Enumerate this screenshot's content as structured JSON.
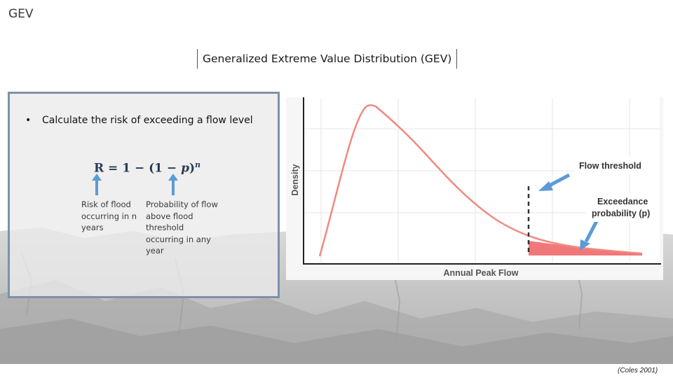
{
  "slide": {
    "label": "GEV",
    "title": "Generalized Extreme Value Distribution (GEV)",
    "citation": "(Coles 2001)"
  },
  "left_panel": {
    "bullet": "Calculate the risk of exceeding a flow level",
    "formula": {
      "lhs": "R = 1 − (1 − ",
      "p": "p",
      "close": ")",
      "exponent": "n"
    },
    "notes": {
      "risk": "Risk of flood occurring in n years",
      "probability": "Probability of flow above flood threshold occurring in any year"
    }
  },
  "chart": {
    "xlabel": "Annual Peak Flow",
    "ylabel": "Density",
    "callouts": {
      "threshold": "Flow threshold",
      "exceedance_line1": "Exceedance",
      "exceedance_line2": "probability (p)"
    },
    "colors": {
      "curve": "#f08a80",
      "tail_fill": "#f0787a",
      "arrow": "#5b9bd5",
      "threshold_line": "#333333"
    }
  }
}
